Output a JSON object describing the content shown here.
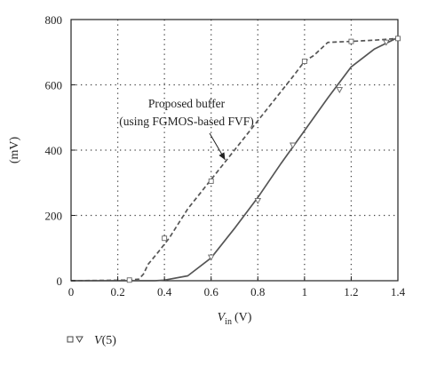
{
  "chart_data": {
    "type": "line",
    "xlabel": {
      "main": "V",
      "sub": "in",
      "unit": "(V)"
    },
    "ylabel": "(mV)",
    "xlim": [
      0,
      1.4
    ],
    "ylim": [
      0,
      800
    ],
    "x_ticks": [
      "0",
      "0.2",
      "0.4",
      "0.6",
      "0.8",
      "1",
      "1.2",
      "1.4"
    ],
    "y_ticks": [
      "0",
      "200",
      "400",
      "600",
      "800"
    ],
    "grid": "dotted",
    "annotation": {
      "lines": [
        "Proposed buffer",
        "(using FGMOS-based FVF)"
      ],
      "points_to": {
        "x": 0.66,
        "y": 370
      }
    },
    "legend": {
      "label": "V(5)",
      "symbols": [
        "□",
        "▽"
      ],
      "placement": "bottom-left"
    },
    "series": [
      {
        "style": "dashed",
        "marker": "square",
        "x": [
          0,
          0.25,
          0.29,
          0.31,
          0.33,
          0.37,
          0.42,
          0.5,
          0.6,
          0.7,
          0.8,
          0.9,
          0.95,
          1.0,
          1.04,
          1.1,
          1.2,
          1.3,
          1.4
        ],
        "values": [
          0,
          2,
          5,
          20,
          50,
          85,
          130,
          220,
          310,
          400,
          490,
          580,
          625,
          672,
          690,
          730,
          733,
          737,
          742
        ]
      },
      {
        "style": "solid",
        "marker": "triangle-down",
        "x": [
          0,
          0.36,
          0.4,
          0.5,
          0.6,
          0.7,
          0.8,
          0.9,
          1.0,
          1.1,
          1.2,
          1.3,
          1.4
        ],
        "values": [
          0,
          0,
          2,
          15,
          70,
          160,
          255,
          360,
          460,
          560,
          655,
          710,
          745
        ]
      }
    ],
    "marker_points": {
      "square": [
        [
          0.25,
          2
        ],
        [
          0.4,
          130
        ],
        [
          0.6,
          305
        ],
        [
          1.0,
          672
        ],
        [
          1.2,
          733
        ],
        [
          1.4,
          742
        ]
      ],
      "triangle-down": [
        [
          0.6,
          72
        ],
        [
          0.8,
          245
        ],
        [
          0.95,
          415
        ],
        [
          1.15,
          585
        ],
        [
          1.35,
          730
        ]
      ]
    }
  }
}
